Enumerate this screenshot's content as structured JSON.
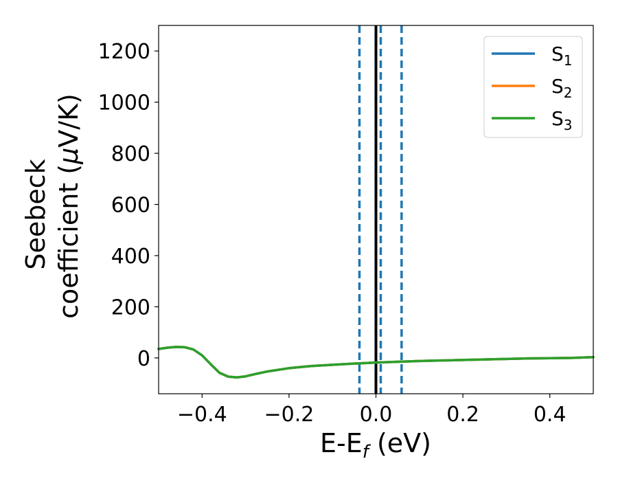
{
  "chart_data": {
    "type": "line",
    "xlabel": "E-E",
    "xlabel_sub": "f",
    "xlabel_unit": " (eV)",
    "ylabel_line1": "Seebeck",
    "ylabel_line2": "coefficient  (",
    "ylabel_mu": "μ",
    "ylabel_line2_end": "V/K)",
    "xlim": [
      -0.5,
      0.5
    ],
    "ylim": [
      -140,
      1300
    ],
    "xticks": [
      -0.4,
      -0.2,
      0.0,
      0.2,
      0.4
    ],
    "xtick_labels": [
      "−0.4",
      "−0.2",
      "0.0",
      "0.2",
      "0.4"
    ],
    "yticks": [
      0,
      200,
      400,
      600,
      800,
      1000,
      1200
    ],
    "ytick_labels": [
      "0",
      "200",
      "400",
      "600",
      "800",
      "1000",
      "1200"
    ],
    "legend_position": "top-right",
    "series": [
      {
        "name": "S",
        "sub": "1",
        "color": "#1f77b4",
        "x": [
          -0.5,
          -0.48,
          -0.46,
          -0.44,
          -0.42,
          -0.4,
          -0.38,
          -0.36,
          -0.34,
          -0.32,
          -0.3,
          -0.28,
          -0.25,
          -0.2,
          -0.15,
          -0.1,
          -0.05,
          0.0,
          0.05,
          0.1,
          0.15,
          0.2,
          0.25,
          0.3,
          0.35,
          0.4,
          0.45,
          0.5
        ],
        "y": [
          35,
          40,
          43,
          42,
          33,
          10,
          -25,
          -58,
          -73,
          -76,
          -72,
          -64,
          -53,
          -40,
          -32,
          -27,
          -22,
          -18,
          -15,
          -12,
          -10,
          -8,
          -6,
          -4,
          -2,
          -1,
          0,
          3
        ]
      },
      {
        "name": "S",
        "sub": "2",
        "color": "#ff7f0e",
        "x": [
          -0.5,
          -0.48,
          -0.46,
          -0.44,
          -0.42,
          -0.4,
          -0.38,
          -0.36,
          -0.34,
          -0.32,
          -0.3,
          -0.28,
          -0.25,
          -0.2,
          -0.15,
          -0.1,
          -0.05,
          0.0,
          0.05,
          0.1,
          0.15,
          0.2,
          0.25,
          0.3,
          0.35,
          0.4,
          0.45,
          0.5
        ],
        "y": [
          35,
          40,
          43,
          42,
          33,
          10,
          -25,
          -58,
          -73,
          -76,
          -72,
          -64,
          -53,
          -40,
          -32,
          -27,
          -22,
          -18,
          -15,
          -12,
          -10,
          -8,
          -6,
          -4,
          -2,
          -1,
          0,
          3
        ]
      },
      {
        "name": "S",
        "sub": "3",
        "color": "#2ca02c",
        "x": [
          -0.5,
          -0.48,
          -0.46,
          -0.44,
          -0.42,
          -0.4,
          -0.38,
          -0.36,
          -0.34,
          -0.32,
          -0.3,
          -0.28,
          -0.25,
          -0.2,
          -0.15,
          -0.1,
          -0.05,
          0.0,
          0.05,
          0.1,
          0.15,
          0.2,
          0.25,
          0.3,
          0.35,
          0.4,
          0.45,
          0.5
        ],
        "y": [
          35,
          40,
          43,
          42,
          33,
          10,
          -25,
          -58,
          -73,
          -76,
          -72,
          -64,
          -53,
          -40,
          -32,
          -27,
          -22,
          -18,
          -15,
          -12,
          -10,
          -8,
          -6,
          -4,
          -2,
          -1,
          0,
          3
        ]
      }
    ],
    "vlines": [
      {
        "x": -0.038,
        "style": "dashed",
        "color": "#1f77b4"
      },
      {
        "x": 0.0,
        "style": "solid",
        "color": "#000000"
      },
      {
        "x": 0.011,
        "style": "dashed",
        "color": "#1f77b4"
      },
      {
        "x": 0.059,
        "style": "dashed",
        "color": "#1f77b4"
      }
    ]
  }
}
